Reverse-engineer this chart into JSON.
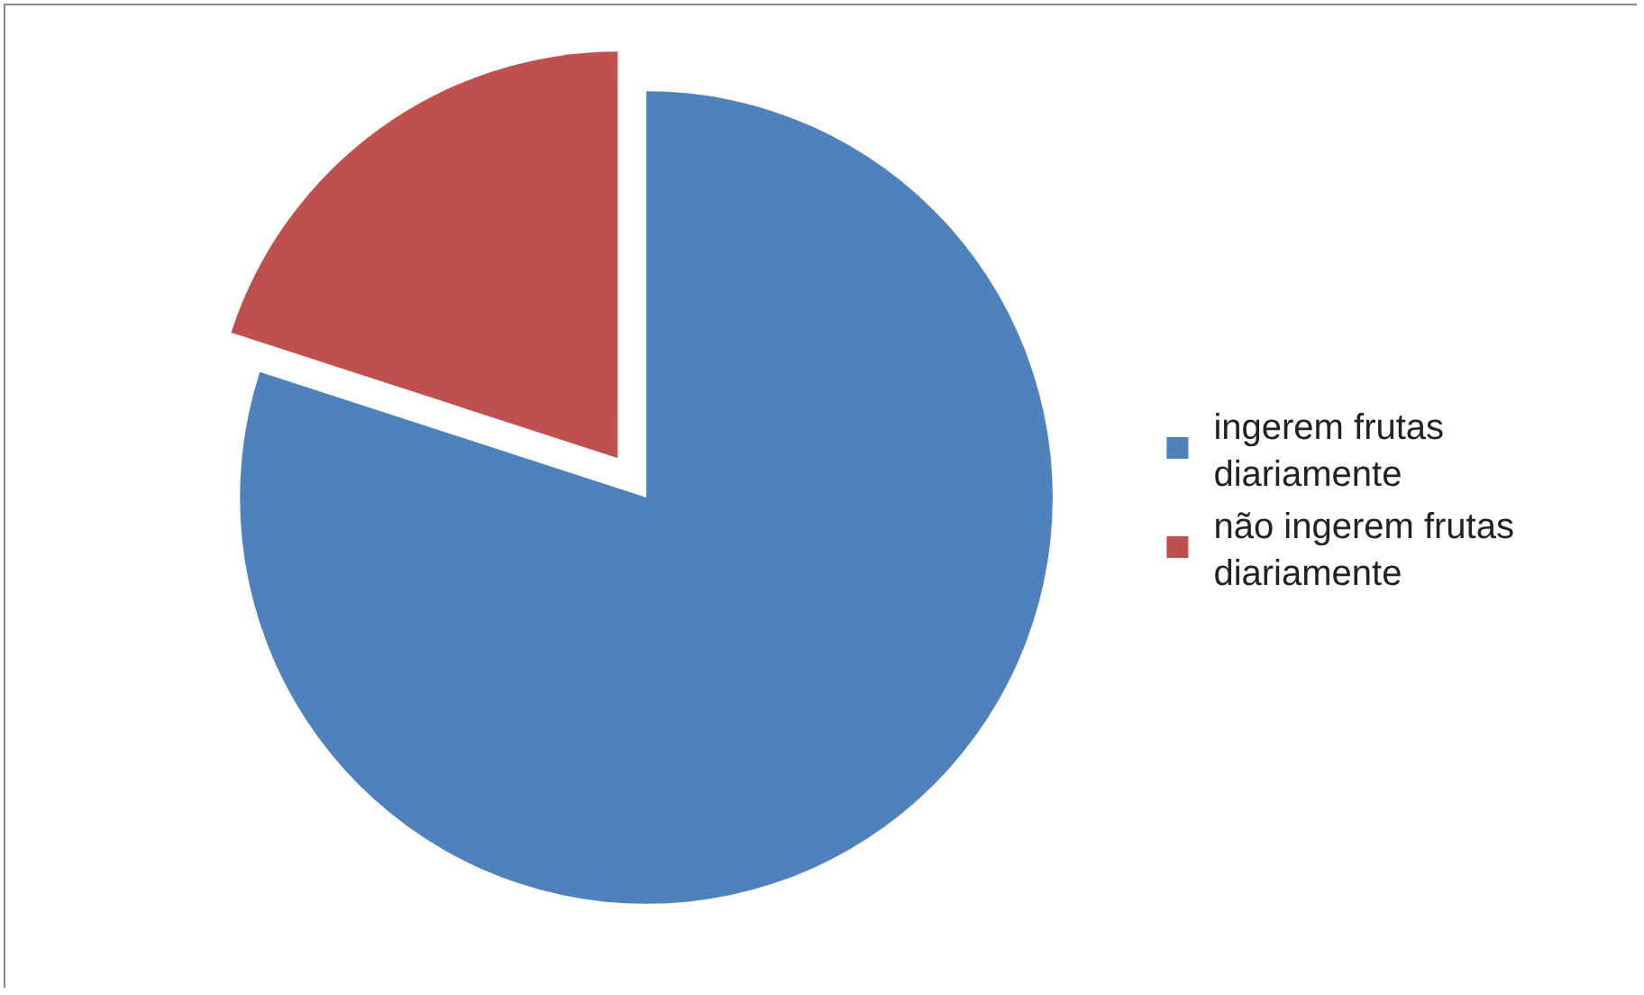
{
  "chart_data": {
    "type": "pie",
    "categories": [
      "ingerem frutas diariamente",
      "não ingerem frutas diariamente"
    ],
    "values": [
      80,
      20
    ],
    "colors": [
      "#4f81bd",
      "#c0504d"
    ],
    "legend": "right"
  }
}
